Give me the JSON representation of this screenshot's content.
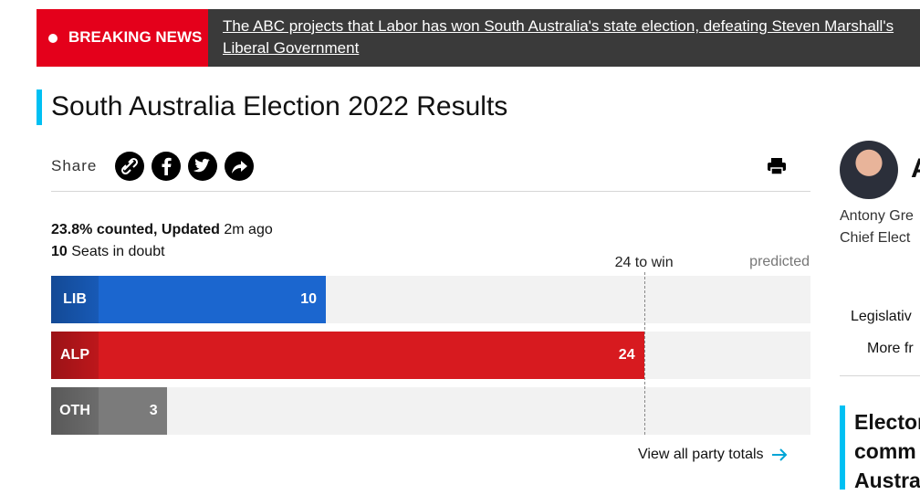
{
  "banner": {
    "label": "BREAKING NEWS",
    "headline": "The ABC projects that Labor has won South Australia's state election, defeating Steven Marshall's Liberal Government"
  },
  "title": "South Australia Election 2022 Results",
  "share": {
    "label": "Share"
  },
  "status": {
    "counted": "23.8% counted, Updated",
    "updated": "2m ago",
    "doubt_count": 10,
    "doubt_label": "Seats in doubt"
  },
  "chart_data": {
    "type": "bar",
    "orientation": "horizontal",
    "categories": [
      "LIB",
      "ALP",
      "OTH"
    ],
    "values": [
      10,
      24,
      3
    ],
    "colors": [
      "#1b66cf",
      "#d71a1f",
      "#7b7b7b"
    ],
    "majority": {
      "value": 24,
      "label": "24 to win"
    },
    "predicted_label": "predicted"
  },
  "link": "View all party totals",
  "sidebar": {
    "initial": "A",
    "name": "Antony Gre",
    "role": "Chief Elect",
    "menu": [
      "Legislativ",
      "More fr"
    ],
    "heading": [
      "Elector",
      "comm",
      "Austra"
    ]
  }
}
